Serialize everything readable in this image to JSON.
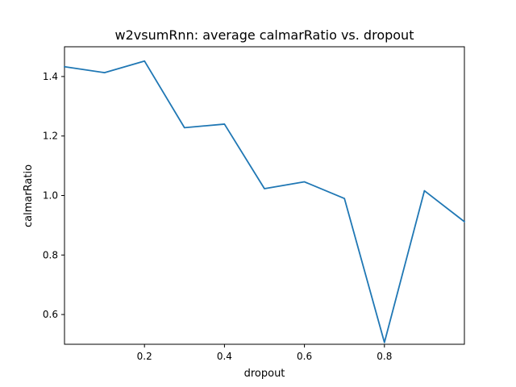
{
  "chart_data": {
    "type": "line",
    "title": "w2vsumRnn: average calmarRatio vs. dropout",
    "xlabel": "dropout",
    "ylabel": "calmarRatio",
    "xlim": [
      0.0,
      1.0
    ],
    "ylim": [
      0.5,
      1.5
    ],
    "xticks": [
      0.2,
      0.4,
      0.6,
      0.8
    ],
    "xtick_labels": [
      "0.2",
      "0.4",
      "0.6",
      "0.8"
    ],
    "yticks": [
      0.6,
      0.8,
      1.0,
      1.2,
      1.4
    ],
    "ytick_labels": [
      "0.6",
      "0.8",
      "1.0",
      "1.2",
      "1.4"
    ],
    "grid": false,
    "series": [
      {
        "color": "#1f77b4",
        "x": [
          0.0,
          0.1,
          0.2,
          0.3,
          0.4,
          0.5,
          0.6,
          0.7,
          0.8,
          0.9,
          1.0
        ],
        "y": [
          1.433,
          1.413,
          1.452,
          1.228,
          1.24,
          1.023,
          1.046,
          0.99,
          0.506,
          1.016,
          0.912
        ]
      }
    ]
  }
}
